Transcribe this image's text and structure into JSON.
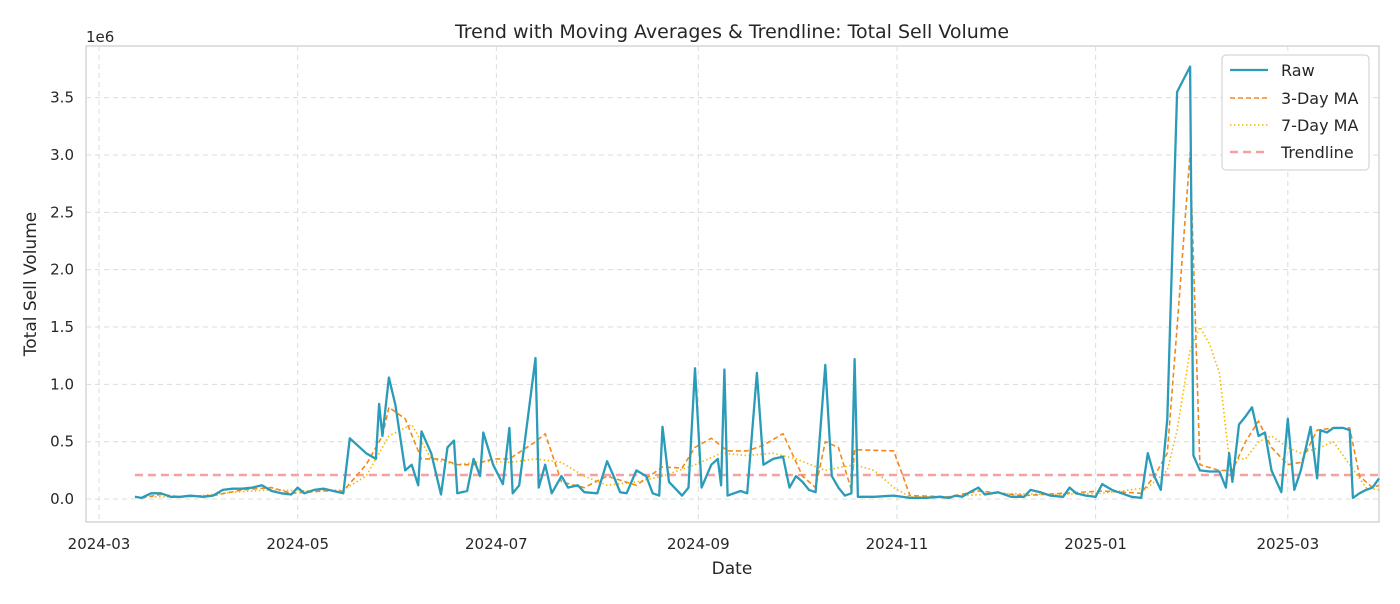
{
  "chart_data": {
    "type": "line",
    "title": "Trend with Moving Averages & Trendline: Total Sell Volume",
    "xlabel": "Date",
    "ylabel": "Total Sell Volume",
    "y_offset_label": "1e6",
    "x_type": "date",
    "xlim": [
      "2024-02-26",
      "2025-03-29"
    ],
    "ylim": [
      -0.2,
      3.95
    ],
    "x_ticks": [
      "2024-03",
      "2024-05",
      "2024-07",
      "2024-09",
      "2024-11",
      "2025-01",
      "2025-03"
    ],
    "y_ticks": [
      "0.0",
      "0.5",
      "1.0",
      "1.5",
      "2.0",
      "2.5",
      "3.0",
      "3.5"
    ],
    "y_tick_values": [
      0,
      0.5,
      1.0,
      1.5,
      2.0,
      2.5,
      3.0,
      3.5
    ],
    "grid": true,
    "legend_position": "top-right",
    "colors": {
      "raw": "#2a9bb8",
      "ma3": "#f28a1a",
      "ma7": "#f5b800",
      "trend": "#f7a0a0"
    },
    "series": [
      {
        "name": "Raw",
        "style": "solid",
        "points": [
          [
            "2024-03-12",
            0.02
          ],
          [
            "2024-03-14",
            0.01
          ],
          [
            "2024-03-17",
            0.05
          ],
          [
            "2024-03-20",
            0.05
          ],
          [
            "2024-03-23",
            0.02
          ],
          [
            "2024-03-26",
            0.02
          ],
          [
            "2024-03-29",
            0.03
          ],
          [
            "2024-04-02",
            0.02
          ],
          [
            "2024-04-05",
            0.03
          ],
          [
            "2024-04-08",
            0.08
          ],
          [
            "2024-04-11",
            0.09
          ],
          [
            "2024-04-14",
            0.09
          ],
          [
            "2024-04-17",
            0.1
          ],
          [
            "2024-04-20",
            0.12
          ],
          [
            "2024-04-23",
            0.07
          ],
          [
            "2024-04-26",
            0.05
          ],
          [
            "2024-04-29",
            0.04
          ],
          [
            "2024-05-01",
            0.1
          ],
          [
            "2024-05-03",
            0.05
          ],
          [
            "2024-05-06",
            0.08
          ],
          [
            "2024-05-09",
            0.09
          ],
          [
            "2024-05-12",
            0.07
          ],
          [
            "2024-05-15",
            0.05
          ],
          [
            "2024-05-17",
            0.53
          ],
          [
            "2024-05-22",
            0.4
          ],
          [
            "2024-05-25",
            0.35
          ],
          [
            "2024-05-26",
            0.83
          ],
          [
            "2024-05-27",
            0.55
          ],
          [
            "2024-05-29",
            1.06
          ],
          [
            "2024-05-31",
            0.82
          ],
          [
            "2024-06-03",
            0.25
          ],
          [
            "2024-06-05",
            0.3
          ],
          [
            "2024-06-07",
            0.12
          ],
          [
            "2024-06-08",
            0.59
          ],
          [
            "2024-06-11",
            0.4
          ],
          [
            "2024-06-14",
            0.04
          ],
          [
            "2024-06-16",
            0.45
          ],
          [
            "2024-06-18",
            0.51
          ],
          [
            "2024-06-19",
            0.05
          ],
          [
            "2024-06-22",
            0.07
          ],
          [
            "2024-06-24",
            0.35
          ],
          [
            "2024-06-26",
            0.2
          ],
          [
            "2024-06-27",
            0.58
          ],
          [
            "2024-06-30",
            0.3
          ],
          [
            "2024-07-03",
            0.13
          ],
          [
            "2024-07-05",
            0.62
          ],
          [
            "2024-07-06",
            0.05
          ],
          [
            "2024-07-08",
            0.12
          ],
          [
            "2024-07-13",
            1.23
          ],
          [
            "2024-07-14",
            0.1
          ],
          [
            "2024-07-16",
            0.3
          ],
          [
            "2024-07-18",
            0.05
          ],
          [
            "2024-07-21",
            0.2
          ],
          [
            "2024-07-23",
            0.1
          ],
          [
            "2024-07-26",
            0.12
          ],
          [
            "2024-07-28",
            0.06
          ],
          [
            "2024-08-01",
            0.05
          ],
          [
            "2024-08-04",
            0.33
          ],
          [
            "2024-08-06",
            0.2
          ],
          [
            "2024-08-08",
            0.06
          ],
          [
            "2024-08-10",
            0.05
          ],
          [
            "2024-08-13",
            0.25
          ],
          [
            "2024-08-16",
            0.2
          ],
          [
            "2024-08-18",
            0.05
          ],
          [
            "2024-08-20",
            0.03
          ],
          [
            "2024-08-21",
            0.63
          ],
          [
            "2024-08-23",
            0.15
          ],
          [
            "2024-08-27",
            0.03
          ],
          [
            "2024-08-29",
            0.1
          ],
          [
            "2024-08-31",
            1.14
          ],
          [
            "2024-09-02",
            0.1
          ],
          [
            "2024-09-05",
            0.3
          ],
          [
            "2024-09-07",
            0.35
          ],
          [
            "2024-09-08",
            0.12
          ],
          [
            "2024-09-09",
            1.13
          ],
          [
            "2024-09-10",
            0.03
          ],
          [
            "2024-09-14",
            0.07
          ],
          [
            "2024-09-16",
            0.05
          ],
          [
            "2024-09-19",
            1.1
          ],
          [
            "2024-09-21",
            0.3
          ],
          [
            "2024-09-24",
            0.35
          ],
          [
            "2024-09-27",
            0.37
          ],
          [
            "2024-09-29",
            0.1
          ],
          [
            "2024-10-01",
            0.2
          ],
          [
            "2024-10-03",
            0.15
          ],
          [
            "2024-10-05",
            0.08
          ],
          [
            "2024-10-07",
            0.06
          ],
          [
            "2024-10-10",
            1.17
          ],
          [
            "2024-10-12",
            0.2
          ],
          [
            "2024-10-14",
            0.1
          ],
          [
            "2024-10-16",
            0.03
          ],
          [
            "2024-10-18",
            0.05
          ],
          [
            "2024-10-19",
            1.22
          ],
          [
            "2024-10-20",
            0.02
          ],
          [
            "2024-10-25",
            0.02
          ],
          [
            "2024-10-31",
            0.03
          ],
          [
            "2024-11-05",
            0.01
          ],
          [
            "2024-11-10",
            0.01
          ],
          [
            "2024-11-14",
            0.02
          ],
          [
            "2024-11-17",
            0.01
          ],
          [
            "2024-11-19",
            0.03
          ],
          [
            "2024-11-21",
            0.02
          ],
          [
            "2024-11-24",
            0.07
          ],
          [
            "2024-11-26",
            0.1
          ],
          [
            "2024-11-28",
            0.04
          ],
          [
            "2024-12-02",
            0.06
          ],
          [
            "2024-12-06",
            0.02
          ],
          [
            "2024-12-10",
            0.02
          ],
          [
            "2024-12-12",
            0.08
          ],
          [
            "2024-12-15",
            0.06
          ],
          [
            "2024-12-18",
            0.03
          ],
          [
            "2024-12-22",
            0.02
          ],
          [
            "2024-12-24",
            0.1
          ],
          [
            "2024-12-26",
            0.05
          ],
          [
            "2024-12-29",
            0.03
          ],
          [
            "2025-01-01",
            0.02
          ],
          [
            "2025-01-03",
            0.13
          ],
          [
            "2025-01-06",
            0.08
          ],
          [
            "2025-01-09",
            0.05
          ],
          [
            "2025-01-12",
            0.02
          ],
          [
            "2025-01-15",
            0.01
          ],
          [
            "2025-01-17",
            0.4
          ],
          [
            "2025-01-19",
            0.2
          ],
          [
            "2025-01-21",
            0.08
          ],
          [
            "2025-01-23",
            0.7
          ],
          [
            "2025-01-26",
            3.55
          ],
          [
            "2025-01-30",
            3.77
          ],
          [
            "2025-01-31",
            0.38
          ],
          [
            "2025-02-02",
            0.25
          ],
          [
            "2025-02-05",
            0.24
          ],
          [
            "2025-02-08",
            0.24
          ],
          [
            "2025-02-10",
            0.1
          ],
          [
            "2025-02-11",
            0.4
          ],
          [
            "2025-02-12",
            0.15
          ],
          [
            "2025-02-14",
            0.65
          ],
          [
            "2025-02-16",
            0.72
          ],
          [
            "2025-02-18",
            0.8
          ],
          [
            "2025-02-20",
            0.55
          ],
          [
            "2025-02-22",
            0.58
          ],
          [
            "2025-02-24",
            0.25
          ],
          [
            "2025-02-27",
            0.06
          ],
          [
            "2025-03-01",
            0.7
          ],
          [
            "2025-03-03",
            0.08
          ],
          [
            "2025-03-05",
            0.25
          ],
          [
            "2025-03-08",
            0.63
          ],
          [
            "2025-03-10",
            0.18
          ],
          [
            "2025-03-11",
            0.6
          ],
          [
            "2025-03-13",
            0.58
          ],
          [
            "2025-03-15",
            0.62
          ],
          [
            "2025-03-18",
            0.62
          ],
          [
            "2025-03-20",
            0.6
          ],
          [
            "2025-03-21",
            0.01
          ],
          [
            "2025-03-23",
            0.05
          ],
          [
            "2025-03-25",
            0.08
          ],
          [
            "2025-03-27",
            0.1
          ],
          [
            "2025-03-29",
            0.18
          ]
        ]
      },
      {
        "name": "3-Day MA",
        "style": "dashed",
        "points": [
          [
            "2024-03-14",
            0.01
          ],
          [
            "2024-03-20",
            0.04
          ],
          [
            "2024-03-26",
            0.02
          ],
          [
            "2024-04-05",
            0.03
          ],
          [
            "2024-04-14",
            0.08
          ],
          [
            "2024-04-23",
            0.1
          ],
          [
            "2024-04-29",
            0.05
          ],
          [
            "2024-05-09",
            0.07
          ],
          [
            "2024-05-15",
            0.07
          ],
          [
            "2024-05-22",
            0.3
          ],
          [
            "2024-05-27",
            0.55
          ],
          [
            "2024-05-29",
            0.8
          ],
          [
            "2024-06-03",
            0.7
          ],
          [
            "2024-06-08",
            0.35
          ],
          [
            "2024-06-14",
            0.35
          ],
          [
            "2024-06-19",
            0.3
          ],
          [
            "2024-06-24",
            0.3
          ],
          [
            "2024-06-30",
            0.35
          ],
          [
            "2024-07-05",
            0.35
          ],
          [
            "2024-07-13",
            0.5
          ],
          [
            "2024-07-16",
            0.57
          ],
          [
            "2024-07-21",
            0.15
          ],
          [
            "2024-07-28",
            0.1
          ],
          [
            "2024-08-04",
            0.2
          ],
          [
            "2024-08-13",
            0.12
          ],
          [
            "2024-08-21",
            0.28
          ],
          [
            "2024-08-27",
            0.27
          ],
          [
            "2024-08-31",
            0.45
          ],
          [
            "2024-09-05",
            0.53
          ],
          [
            "2024-09-10",
            0.42
          ],
          [
            "2024-09-16",
            0.42
          ],
          [
            "2024-09-21",
            0.47
          ],
          [
            "2024-09-27",
            0.57
          ],
          [
            "2024-10-03",
            0.2
          ],
          [
            "2024-10-07",
            0.1
          ],
          [
            "2024-10-10",
            0.5
          ],
          [
            "2024-10-14",
            0.45
          ],
          [
            "2024-10-18",
            0.08
          ],
          [
            "2024-10-19",
            0.43
          ],
          [
            "2024-10-31",
            0.42
          ],
          [
            "2024-11-05",
            0.03
          ],
          [
            "2024-11-17",
            0.02
          ],
          [
            "2024-11-26",
            0.07
          ],
          [
            "2024-12-10",
            0.03
          ],
          [
            "2024-12-22",
            0.05
          ],
          [
            "2025-01-03",
            0.07
          ],
          [
            "2025-01-15",
            0.05
          ],
          [
            "2025-01-19",
            0.2
          ],
          [
            "2025-01-23",
            0.4
          ],
          [
            "2025-01-26",
            1.5
          ],
          [
            "2025-01-30",
            3.02
          ],
          [
            "2025-02-02",
            0.3
          ],
          [
            "2025-02-08",
            0.25
          ],
          [
            "2025-02-12",
            0.25
          ],
          [
            "2025-02-16",
            0.5
          ],
          [
            "2025-02-20",
            0.68
          ],
          [
            "2025-02-24",
            0.45
          ],
          [
            "2025-03-01",
            0.3
          ],
          [
            "2025-03-05",
            0.32
          ],
          [
            "2025-03-10",
            0.6
          ],
          [
            "2025-03-15",
            0.62
          ],
          [
            "2025-03-20",
            0.62
          ],
          [
            "2025-03-23",
            0.2
          ],
          [
            "2025-03-27",
            0.1
          ],
          [
            "2025-03-29",
            0.12
          ]
        ]
      },
      {
        "name": "7-Day MA",
        "style": "dotted",
        "points": [
          [
            "2024-03-17",
            0.02
          ],
          [
            "2024-03-29",
            0.02
          ],
          [
            "2024-04-11",
            0.06
          ],
          [
            "2024-04-23",
            0.08
          ],
          [
            "2024-05-06",
            0.07
          ],
          [
            "2024-05-15",
            0.08
          ],
          [
            "2024-05-22",
            0.2
          ],
          [
            "2024-05-29",
            0.55
          ],
          [
            "2024-06-05",
            0.65
          ],
          [
            "2024-06-11",
            0.35
          ],
          [
            "2024-06-19",
            0.3
          ],
          [
            "2024-06-27",
            0.33
          ],
          [
            "2024-07-05",
            0.32
          ],
          [
            "2024-07-13",
            0.35
          ],
          [
            "2024-07-21",
            0.32
          ],
          [
            "2024-07-28",
            0.2
          ],
          [
            "2024-08-04",
            0.12
          ],
          [
            "2024-08-13",
            0.15
          ],
          [
            "2024-08-21",
            0.2
          ],
          [
            "2024-08-31",
            0.3
          ],
          [
            "2024-09-08",
            0.4
          ],
          [
            "2024-09-16",
            0.38
          ],
          [
            "2024-09-24",
            0.4
          ],
          [
            "2024-10-01",
            0.35
          ],
          [
            "2024-10-10",
            0.25
          ],
          [
            "2024-10-19",
            0.3
          ],
          [
            "2024-10-25",
            0.25
          ],
          [
            "2024-10-31",
            0.1
          ],
          [
            "2024-11-05",
            0.02
          ],
          [
            "2024-11-17",
            0.02
          ],
          [
            "2024-12-02",
            0.05
          ],
          [
            "2024-12-18",
            0.04
          ],
          [
            "2025-01-03",
            0.05
          ],
          [
            "2025-01-17",
            0.1
          ],
          [
            "2025-01-23",
            0.25
          ],
          [
            "2025-01-26",
            0.6
          ],
          [
            "2025-01-30",
            1.3
          ],
          [
            "2025-02-02",
            1.5
          ],
          [
            "2025-02-05",
            1.35
          ],
          [
            "2025-02-08",
            1.1
          ],
          [
            "2025-02-11",
            0.35
          ],
          [
            "2025-02-16",
            0.35
          ],
          [
            "2025-02-20",
            0.5
          ],
          [
            "2025-02-24",
            0.55
          ],
          [
            "2025-03-01",
            0.45
          ],
          [
            "2025-03-05",
            0.4
          ],
          [
            "2025-03-11",
            0.45
          ],
          [
            "2025-03-15",
            0.5
          ],
          [
            "2025-03-20",
            0.3
          ],
          [
            "2025-03-25",
            0.1
          ],
          [
            "2025-03-29",
            0.08
          ]
        ]
      },
      {
        "name": "Trendline",
        "style": "long-dash",
        "points": [
          [
            "2024-03-12",
            0.21
          ],
          [
            "2025-03-29",
            0.21
          ]
        ]
      }
    ]
  }
}
